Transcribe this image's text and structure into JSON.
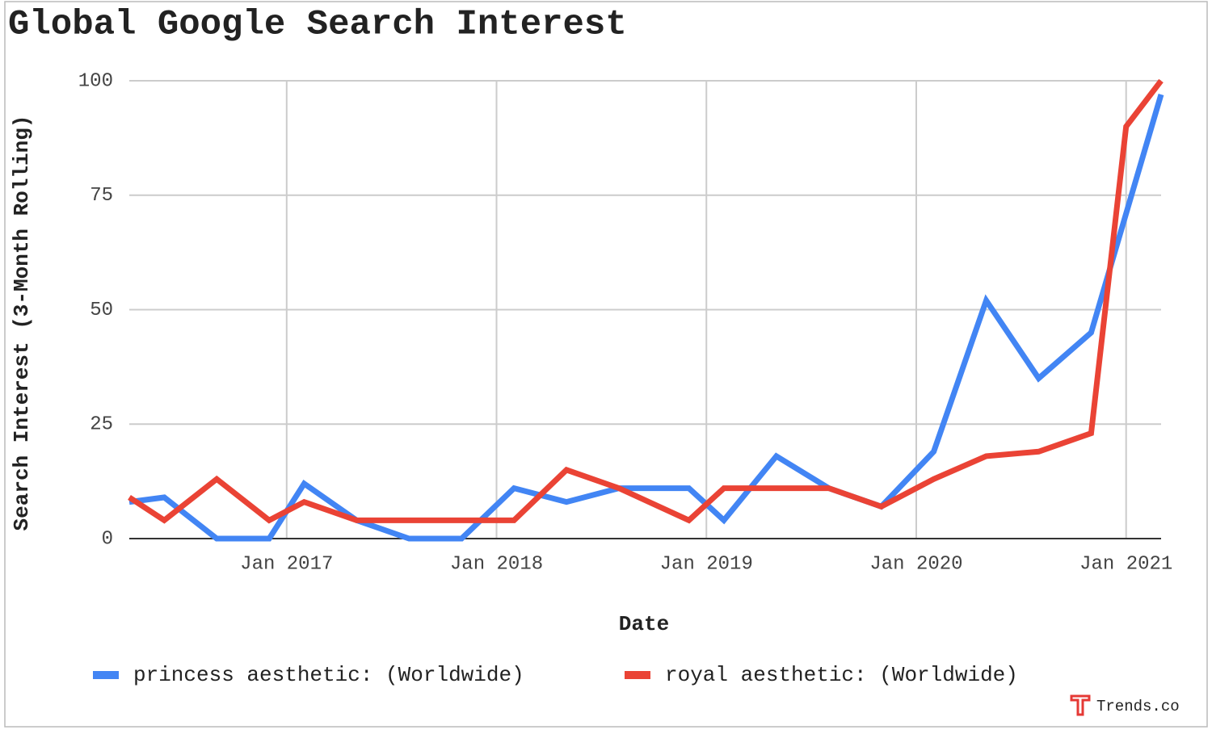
{
  "chart_data": {
    "type": "line",
    "title": "Global Google Search Interest",
    "x_label": "Date",
    "y_label": "Search Interest (3-Month Rolling)",
    "watermark": "Trends.co",
    "xlim": [
      "2016-04",
      "2021-03"
    ],
    "xticks": [
      {
        "value": "2017-01",
        "label": "Jan 2017"
      },
      {
        "value": "2018-01",
        "label": "Jan 2018"
      },
      {
        "value": "2019-01",
        "label": "Jan 2019"
      },
      {
        "value": "2020-01",
        "label": "Jan 2020"
      },
      {
        "value": "2021-01",
        "label": "Jan 2021"
      }
    ],
    "ylim": [
      0,
      100
    ],
    "yticks": [
      0,
      25,
      50,
      75,
      100
    ],
    "grid": true,
    "legend": "bottom",
    "series": [
      {
        "name": "princess aesthetic: (Worldwide)",
        "color": "#4285f4",
        "x": [
          "2016-04",
          "2016-06",
          "2016-09",
          "2016-12",
          "2017-02",
          "2017-05",
          "2017-08",
          "2017-11",
          "2018-02",
          "2018-05",
          "2018-08",
          "2018-12",
          "2019-02",
          "2019-05",
          "2019-08",
          "2019-11",
          "2020-02",
          "2020-05",
          "2020-08",
          "2020-11",
          "2021-03"
        ],
        "values": [
          8,
          9,
          0,
          0,
          12,
          4,
          0,
          0,
          11,
          8,
          11,
          11,
          4,
          18,
          11,
          7,
          19,
          52,
          35,
          45,
          97
        ]
      },
      {
        "name": "royal aesthetic: (Worldwide)",
        "color": "#ea4335",
        "x": [
          "2016-04",
          "2016-06",
          "2016-09",
          "2016-12",
          "2017-02",
          "2017-05",
          "2017-08",
          "2017-11",
          "2018-02",
          "2018-05",
          "2018-08",
          "2018-12",
          "2019-02",
          "2019-05",
          "2019-08",
          "2019-11",
          "2020-02",
          "2020-05",
          "2020-08",
          "2020-11",
          "2021-01",
          "2021-03"
        ],
        "values": [
          9,
          4,
          13,
          4,
          8,
          4,
          4,
          4,
          4,
          15,
          11,
          4,
          11,
          11,
          11,
          7,
          13,
          18,
          19,
          23,
          90,
          100
        ]
      }
    ]
  }
}
